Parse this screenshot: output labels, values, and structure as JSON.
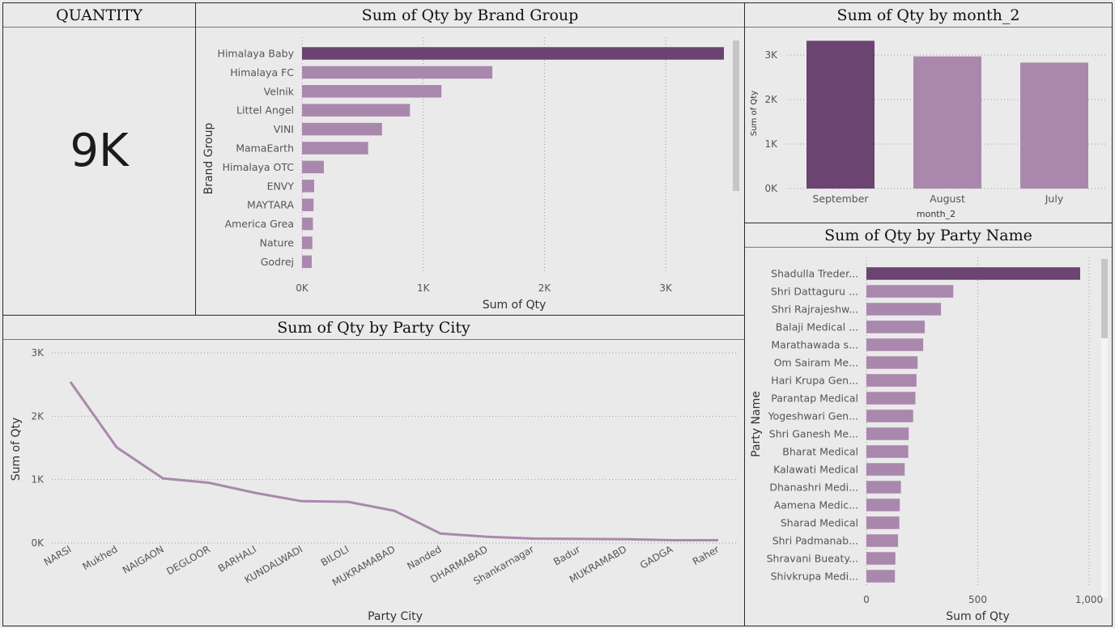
{
  "kpi": {
    "title": "QUANTITY",
    "value": "9K"
  },
  "colors": {
    "highlight": "#6b4471",
    "bar": "#aa88ad",
    "line": "#aa88ad",
    "grid": "#9a9a9a",
    "text": "#333333"
  },
  "brand_chart": {
    "title": "Sum of Qty by Brand Group"
  },
  "month_chart": {
    "title": "Sum of Qty by month_2"
  },
  "city_chart": {
    "title": "Sum of Qty by Party City"
  },
  "party_chart": {
    "title": "Sum of Qty by Party Name"
  },
  "chart_data": [
    {
      "id": "brand",
      "type": "bar",
      "orientation": "horizontal",
      "title": "Sum of Qty by Brand Group",
      "xlabel": "Sum of Qty",
      "ylabel": "Brand Group",
      "categories": [
        "Himalaya Baby",
        "Himalaya FC",
        "Velnik",
        "Littel Angel",
        "VINI",
        "MamaEarth",
        "Himalaya OTC",
        "ENVY",
        "MAYTARA",
        "America Grea",
        "Nature",
        "Godrej"
      ],
      "values": [
        3480,
        1570,
        1150,
        890,
        660,
        545,
        180,
        100,
        95,
        90,
        85,
        80
      ],
      "highlight_index": 0,
      "xlim": [
        0,
        3500
      ],
      "xticks": [
        0,
        1000,
        2000,
        3000
      ],
      "xtick_labels": [
        "0K",
        "1K",
        "2K",
        "3K"
      ],
      "grid": true
    },
    {
      "id": "month",
      "type": "bar",
      "orientation": "vertical",
      "title": "Sum of Qty by month_2",
      "xlabel": "month_2",
      "ylabel": "Sum of Qty",
      "categories": [
        "September",
        "August",
        "July"
      ],
      "values": [
        3320,
        2970,
        2830
      ],
      "highlight_index": 0,
      "ylim": [
        0,
        3400
      ],
      "yticks": [
        0,
        1000,
        2000,
        3000
      ],
      "ytick_labels": [
        "0K",
        "1K",
        "2K",
        "3K"
      ],
      "grid": true
    },
    {
      "id": "city",
      "type": "line",
      "title": "Sum of Qty by Party City",
      "xlabel": "Party City",
      "ylabel": "Sum of Qty",
      "categories": [
        "NARSI",
        "Mukhed",
        "NAIGAON",
        "DEGLOOR",
        "BARHALI",
        "KUNDALWADI",
        "BILOLI",
        "MUKRAMABAD",
        "Nanded",
        "DHARMABAD",
        "Shankarnagar",
        "Badur",
        "MUKRAMABD",
        "GADGA",
        "Raher"
      ],
      "values": [
        2540,
        1510,
        1020,
        950,
        790,
        660,
        650,
        510,
        150,
        100,
        70,
        65,
        60,
        45,
        45
      ],
      "ylim": [
        0,
        3000
      ],
      "yticks": [
        0,
        1000,
        2000,
        3000
      ],
      "ytick_labels": [
        "0K",
        "1K",
        "2K",
        "3K"
      ],
      "grid": true
    },
    {
      "id": "party",
      "type": "bar",
      "orientation": "horizontal",
      "title": "Sum of Qty by Party Name",
      "xlabel": "Sum of Qty",
      "ylabel": "Party Name",
      "categories": [
        "Shadulla Treder...",
        "Shri Dattaguru ...",
        "Shri Rajrajeshw...",
        "Balaji Medical ...",
        "Marathawada s...",
        "Om Sairam Me...",
        "Hari Krupa Gen...",
        "Parantap Medical",
        "Yogeshwari Gen...",
        "Shri Ganesh Me...",
        "Bharat Medical",
        "Kalawati Medical",
        "Dhanashri Medi...",
        "Aamena Medic...",
        "Sharad Medical",
        "Shri Padmanab...",
        "Shravani Bueaty...",
        "Shivkrupa Medi..."
      ],
      "values": [
        960,
        390,
        335,
        262,
        255,
        230,
        225,
        220,
        210,
        190,
        188,
        172,
        155,
        150,
        148,
        142,
        130,
        128
      ],
      "highlight_index": 0,
      "xlim": [
        0,
        1000
      ],
      "xticks": [
        0,
        500,
        1000
      ],
      "xtick_labels": [
        "0",
        "500",
        "1,000"
      ],
      "grid": true
    }
  ]
}
